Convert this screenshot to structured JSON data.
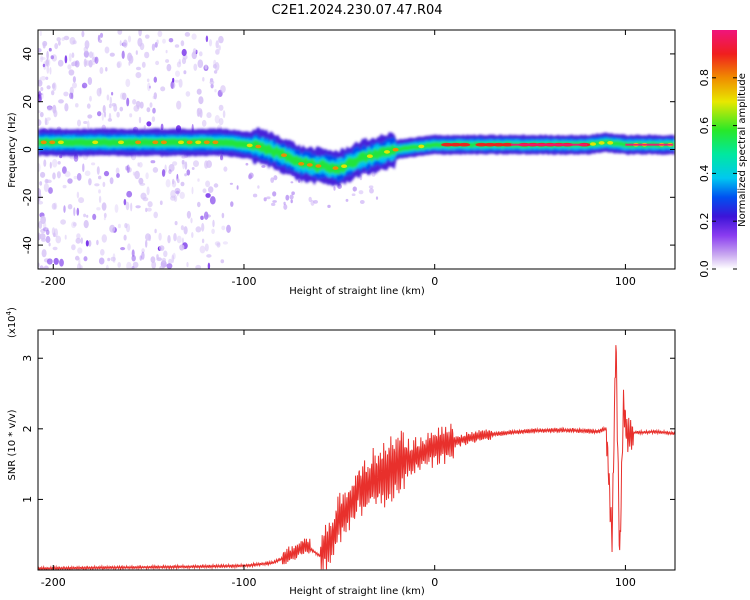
{
  "title": "C2E1.2024.230.07.47.R04",
  "colors": {
    "line": "#e8302c",
    "frame": "#000000",
    "colormap": [
      "#ffffff",
      "#c9a8f0",
      "#8a3cf0",
      "#3c14d8",
      "#0050f0",
      "#00c8f0",
      "#00e8a0",
      "#28e828",
      "#e8e800",
      "#f08c00",
      "#f01e1e",
      "#f0147c"
    ]
  },
  "chart_data": [
    {
      "type": "heatmap",
      "name": "spectrogram",
      "xlabel": "Height of straight line (km)",
      "ylabel": "Frequency (Hz)",
      "xlim": [
        -208,
        126
      ],
      "ylim": [
        -50,
        50
      ],
      "xticks": [
        -200,
        -100,
        0,
        100
      ],
      "yticks": [
        -40,
        -20,
        0,
        20,
        40
      ],
      "ridge_center_hz": [
        [
          -208,
          3
        ],
        [
          -150,
          3
        ],
        [
          -110,
          3
        ],
        [
          -100,
          2
        ],
        [
          -90,
          1
        ],
        [
          -80,
          -2
        ],
        [
          -70,
          -6
        ],
        [
          -60,
          -7
        ],
        [
          -50,
          -8
        ],
        [
          -40,
          -4
        ],
        [
          -30,
          -2
        ],
        [
          -20,
          0
        ],
        [
          -10,
          1
        ],
        [
          0,
          2
        ],
        [
          20,
          2
        ],
        [
          60,
          2
        ],
        [
          80,
          2
        ],
        [
          90,
          3
        ],
        [
          100,
          2
        ],
        [
          126,
          2
        ]
      ],
      "colorbar": {
        "label": "Normalized spectral amplitude",
        "range": [
          0,
          1
        ],
        "ticks": [
          0.0,
          0.2,
          0.4,
          0.6,
          0.8
        ],
        "tick_labels": [
          "0.0",
          "0.2",
          "0.4",
          "0.6",
          "0.8"
        ]
      }
    },
    {
      "type": "line",
      "name": "snr",
      "xlabel": "Height of straight line (km)",
      "ylabel": "SNR (10 * v/v)",
      "y_multiplier": "(x10",
      "y_multiplier_exp": "4",
      "y_multiplier_close": ")",
      "xlim": [
        -208,
        126
      ],
      "ylim": [
        0,
        3.4
      ],
      "xticks": [
        -200,
        -100,
        0,
        100
      ],
      "yticks": [
        1,
        2,
        3
      ],
      "x": [
        -208,
        -180,
        -150,
        -120,
        -100,
        -85,
        -75,
        -68,
        -60,
        -55,
        -50,
        -45,
        -40,
        -35,
        -30,
        -25,
        -20,
        -15,
        -10,
        -5,
        0,
        5,
        10,
        15,
        20,
        25,
        30,
        40,
        50,
        60,
        70,
        80,
        85,
        90,
        93,
        95,
        97,
        99,
        101,
        103,
        105,
        110,
        115,
        120,
        126
      ],
      "y": [
        0.02,
        0.03,
        0.04,
        0.05,
        0.06,
        0.1,
        0.22,
        0.35,
        0.2,
        0.4,
        0.7,
        0.9,
        1.1,
        1.2,
        1.3,
        1.4,
        1.5,
        1.55,
        1.6,
        1.68,
        1.75,
        1.78,
        1.82,
        1.85,
        1.88,
        1.9,
        1.92,
        1.95,
        1.97,
        1.98,
        1.98,
        1.97,
        1.96,
        2.0,
        0.4,
        3.3,
        0.15,
        2.4,
        1.85,
        1.92,
        1.95,
        1.95,
        1.96,
        1.95,
        1.93
      ]
    }
  ]
}
